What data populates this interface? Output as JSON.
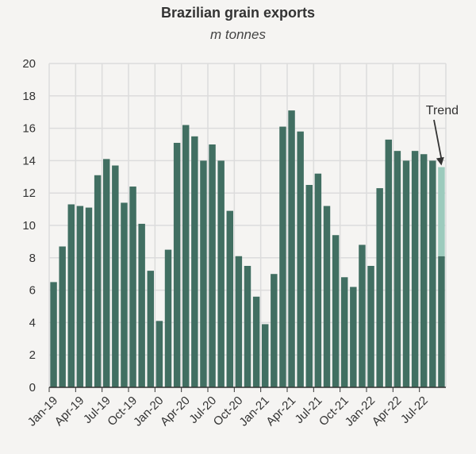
{
  "chart_title": "Brazilian grain exports",
  "chart_subtitle": "m tonnes",
  "colors": {
    "bar": "#416f62",
    "trend": "#9ccbbd",
    "grid": "#dcdcdc",
    "axis": "#333333",
    "background": "#f5f4f2"
  },
  "chart_data": {
    "type": "bar",
    "title": "Brazilian grain exports",
    "subtitle": "m tonnes",
    "xlabel": "",
    "ylabel": "",
    "ylim": [
      0,
      20
    ],
    "yticks": [
      0,
      2,
      4,
      6,
      8,
      10,
      12,
      14,
      16,
      18,
      20
    ],
    "grid": true,
    "categories": [
      "Jan-19",
      "Feb-19",
      "Mar-19",
      "Apr-19",
      "May-19",
      "Jun-19",
      "Jul-19",
      "Aug-19",
      "Sep-19",
      "Oct-19",
      "Nov-19",
      "Dec-19",
      "Jan-20",
      "Feb-20",
      "Mar-20",
      "Apr-20",
      "May-20",
      "Jun-20",
      "Jul-20",
      "Aug-20",
      "Sep-20",
      "Oct-20",
      "Nov-20",
      "Dec-20",
      "Jan-21",
      "Feb-21",
      "Mar-21",
      "Apr-21",
      "May-21",
      "Jun-21",
      "Jul-21",
      "Aug-21",
      "Sep-21",
      "Oct-21",
      "Nov-21",
      "Dec-21",
      "Jan-22",
      "Feb-22",
      "Mar-22",
      "Apr-22",
      "May-22",
      "Jun-22",
      "Jul-22",
      "Aug-22",
      "Sep-22"
    ],
    "xtick_labels": [
      "Jan-19",
      "Apr-19",
      "Jul-19",
      "Oct-19",
      "Jan-20",
      "Apr-20",
      "Jul-20",
      "Oct-20",
      "Jan-21",
      "Apr-21",
      "Jul-21",
      "Oct-21",
      "Jan-22",
      "Apr-22",
      "Jul-22"
    ],
    "series": [
      {
        "values": [
          6.5,
          8.7,
          11.3,
          11.2,
          11.1,
          13.1,
          14.1,
          13.7,
          11.4,
          12.4,
          10.1,
          7.2,
          4.1,
          8.5,
          15.1,
          16.2,
          15.5,
          14.0,
          15.0,
          14.0,
          10.9,
          8.1,
          7.5,
          5.6,
          3.9,
          7.0,
          16.1,
          17.1,
          15.8,
          12.5,
          13.2,
          11.2,
          9.4,
          6.8,
          6.2,
          8.8,
          7.5,
          12.3,
          15.3,
          14.6,
          14.0,
          14.6,
          14.4,
          14.0,
          8.1
        ]
      }
    ],
    "trend_extension": {
      "category": "Sep-22",
      "from": 8.1,
      "to": 13.6
    },
    "annotation": {
      "text": "Trend",
      "target": "Sep-22"
    }
  }
}
